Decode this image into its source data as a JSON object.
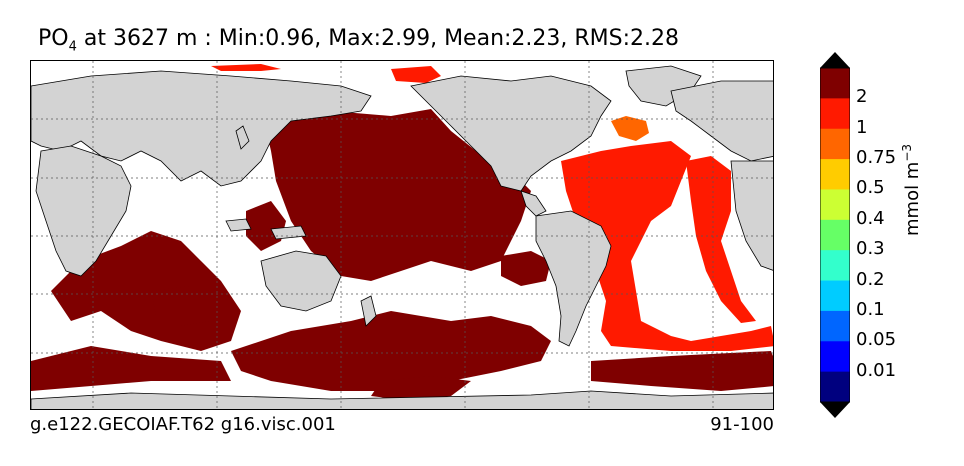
{
  "title": {
    "variable": "PO",
    "subscript": "4",
    "rest": " at 3627 m : Min:0.96, Max:2.99, Mean:2.23, RMS:2.28"
  },
  "footer": {
    "case_name": "g.e122.GECOIAF.T62 g16.visc.001",
    "years": "91-100"
  },
  "colorbar": {
    "units_base": "mmol m",
    "units_exp": "−3",
    "ticks": [
      "2",
      "1",
      "0.75",
      "0.5",
      "0.4",
      "0.3",
      "0.2",
      "0.1",
      "0.05",
      "0.01"
    ],
    "colors": [
      "#7f0000",
      "#ff1a00",
      "#ff6600",
      "#ffcc00",
      "#ccff33",
      "#66ff66",
      "#33ffcc",
      "#00ccff",
      "#0066ff",
      "#0000ff",
      "#00007f"
    ],
    "over_color": "#000000",
    "under_color": "#000000"
  },
  "map_colors": {
    "land": "#d3d3d3",
    "missing": "#ffffff",
    "high": "#7f0000",
    "red": "#ff1a00",
    "orange": "#ff6600",
    "coast": "#000000",
    "grid": "#555555"
  }
}
